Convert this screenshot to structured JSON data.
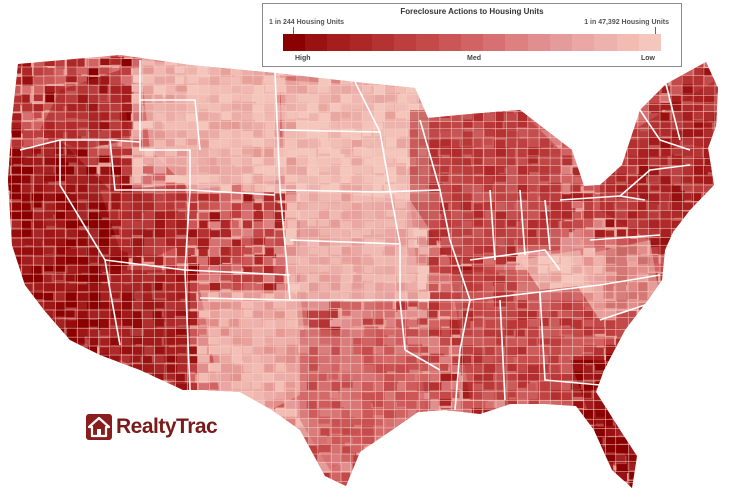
{
  "legend": {
    "title": "Foreclosure Actions to Housing Units",
    "left_label": "1 in 244 Housing Units",
    "right_label": "1 in 47,392 Housing Units",
    "scale_high": "High",
    "scale_med": "Med",
    "scale_low": "Low",
    "ramp_colors": [
      "#8b0000",
      "#991111",
      "#a51d1d",
      "#ad2727",
      "#b53232",
      "#bd3e3e",
      "#c44a4a",
      "#cb5656",
      "#d16363",
      "#d77171",
      "#dc8080",
      "#e18e8e",
      "#e69b9b",
      "#eaa7a4",
      "#eeb2ac",
      "#f2bcb3",
      "#f4c6bc"
    ]
  },
  "logo": {
    "text": "RealtyTrac",
    "color": "#7a1b1b"
  },
  "colors": {
    "state_border": "#ffffff",
    "county_border": "#f7dcd6"
  }
}
